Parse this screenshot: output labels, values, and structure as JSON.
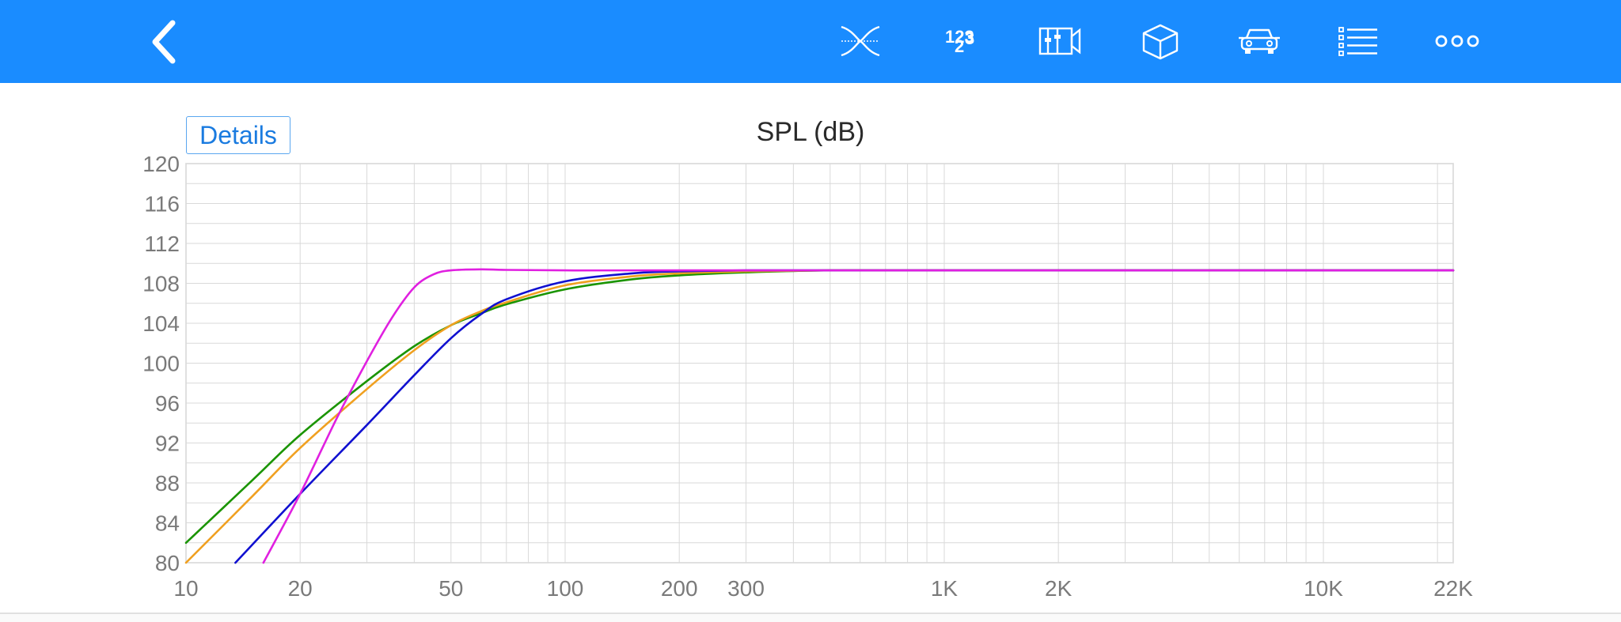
{
  "toolbar": {
    "background": "#1a8cff",
    "back_icon": "chevron-left-icon",
    "tools": [
      {
        "name": "crossover-icon"
      },
      {
        "name": "numbers-icon",
        "text": "123"
      },
      {
        "name": "enclosure-ports-icon"
      },
      {
        "name": "box-3d-icon"
      },
      {
        "name": "car-icon"
      },
      {
        "name": "list-icon"
      },
      {
        "name": "more-icon"
      }
    ]
  },
  "details_label": "Details",
  "chart_data": {
    "type": "line",
    "title": "SPL (dB)",
    "xscale": "log",
    "xlim": [
      10,
      22000
    ],
    "ylim": [
      80,
      120
    ],
    "y_ticks": [
      80,
      84,
      88,
      92,
      96,
      100,
      104,
      108,
      112,
      116,
      120
    ],
    "x_ticks": [
      {
        "value": 10,
        "label": "10"
      },
      {
        "value": 20,
        "label": "20"
      },
      {
        "value": 50,
        "label": "50"
      },
      {
        "value": 100,
        "label": "100"
      },
      {
        "value": 200,
        "label": "200"
      },
      {
        "value": 300,
        "label": "300"
      },
      {
        "value": 1000,
        "label": "1K"
      },
      {
        "value": 2000,
        "label": "2K"
      },
      {
        "value": 10000,
        "label": "10K"
      },
      {
        "value": 22000,
        "label": "22K"
      }
    ],
    "grid": true,
    "series": [
      {
        "color": "#1a9400",
        "x": [
          10,
          15,
          20,
          30,
          40,
          50,
          60,
          70,
          100,
          150,
          200,
          300,
          500,
          1000,
          22000
        ],
        "y": [
          82,
          88.3,
          92.8,
          98.2,
          101.7,
          103.8,
          105.0,
          105.9,
          107.4,
          108.4,
          108.8,
          109.1,
          109.3,
          109.3,
          109.3
        ]
      },
      {
        "color": "#f0a020",
        "x": [
          10,
          15,
          20,
          30,
          40,
          50,
          60,
          70,
          100,
          150,
          200,
          300,
          500,
          1000,
          22000
        ],
        "y": [
          80,
          86.7,
          91.5,
          97.4,
          101.3,
          103.8,
          105.2,
          106.1,
          107.8,
          108.7,
          109.0,
          109.2,
          109.3,
          109.3,
          109.3
        ]
      },
      {
        "color": "#1010d0",
        "x": [
          13.5,
          20,
          30,
          40,
          50,
          60,
          70,
          100,
          150,
          200,
          300,
          500,
          1000,
          22000
        ],
        "y": [
          80,
          86.9,
          93.8,
          98.8,
          102.5,
          104.9,
          106.4,
          108.2,
          109.0,
          109.2,
          109.3,
          109.3,
          109.3,
          109.3
        ]
      },
      {
        "color": "#e020e0",
        "x": [
          16,
          20,
          25,
          30,
          35,
          40,
          45,
          50,
          60,
          70,
          100,
          200,
          22000
        ],
        "y": [
          80,
          86.9,
          94.5,
          100.2,
          104.6,
          107.6,
          108.9,
          109.3,
          109.4,
          109.35,
          109.3,
          109.3,
          109.3
        ]
      }
    ]
  }
}
